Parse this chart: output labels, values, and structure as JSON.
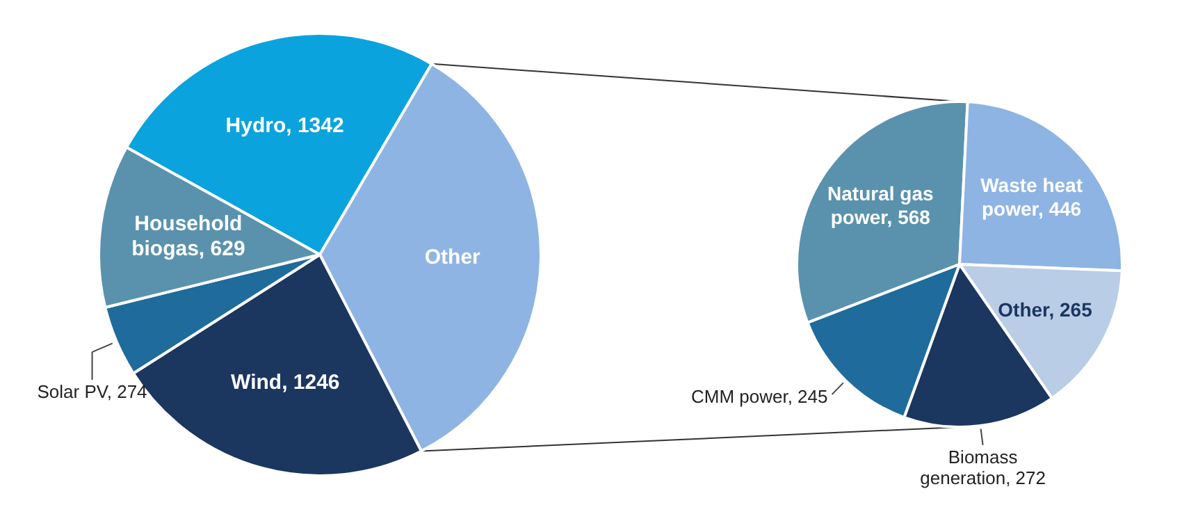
{
  "chart_data": [
    {
      "type": "pie",
      "categories": [
        "Hydro",
        "Other",
        "Wind",
        "Solar PV",
        "Household biogas"
      ],
      "values": [
        1342,
        1796,
        1246,
        274,
        629
      ],
      "colors": [
        "#0ba3dd",
        "#8eb4e3",
        "#1b365f",
        "#1f6b9c",
        "#5a92ae"
      ],
      "value_labels": [
        "1342",
        null,
        "1246",
        "274",
        "629"
      ]
    },
    {
      "type": "pie",
      "categories": [
        "Natural gas power",
        "Waste heat power",
        "Other",
        "Biomass generation",
        "CMM power"
      ],
      "values": [
        568,
        446,
        265,
        272,
        245
      ],
      "colors": [
        "#5a92ae",
        "#8eb4e3",
        "#b9cde6",
        "#1b365f",
        "#1f6b9c"
      ],
      "value_labels": [
        "568",
        "446",
        "265",
        "272",
        "245"
      ]
    }
  ]
}
